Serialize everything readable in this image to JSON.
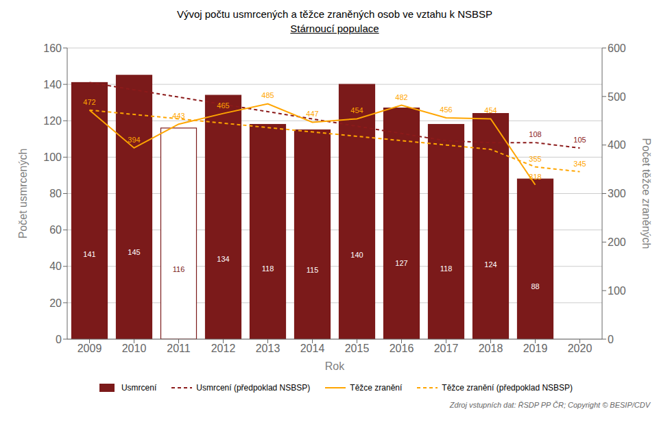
{
  "chart_data": {
    "type": "bar",
    "title": "Vývoj počtu usmrcených a těžce zraněných osob ve vztahu k NSBSP",
    "subtitle": "Stárnoucí populace",
    "xlabel": "Rok",
    "ylabel": "Počet usmrcených",
    "y2label": "Počet těžce zraněných",
    "annotation": "Zdroj vstupních dat: ŘSDP PP ČR; Copyright © BESIP/CDV",
    "categories": [
      "2009",
      "2010",
      "2011",
      "2012",
      "2013",
      "2014",
      "2015",
      "2016",
      "2017",
      "2018",
      "2019",
      "2020"
    ],
    "series": [
      {
        "name": "Usmrcení",
        "type": "bar",
        "color": "#7B1A1A",
        "colors": [
          "#7B1A1A",
          "#7B1A1A",
          "#FFFFFF",
          "#7B1A1A",
          "#7B1A1A",
          "#7B1A1A",
          "#7B1A1A",
          "#7B1A1A",
          "#7B1A1A",
          "#7B1A1A",
          "#7B1A1A",
          "#7B1A1A"
        ],
        "values": [
          141,
          145,
          116,
          134,
          118,
          115,
          140,
          127,
          118,
          124,
          88,
          null
        ]
      },
      {
        "name": "Usmrcení (předpoklad NSBSP)",
        "type": "line",
        "color": "#8B1A1A",
        "line_style": "dashed",
        "values": [
          141,
          137,
          133,
          129,
          125,
          121,
          117,
          113,
          109,
          108,
          108,
          105
        ],
        "value_labels": [
          null,
          null,
          null,
          null,
          null,
          null,
          null,
          null,
          null,
          null,
          "108",
          "105"
        ]
      },
      {
        "name": "Těžce zranění",
        "type": "line",
        "color": "#FFA500",
        "line_style": "solid",
        "axis": "y2",
        "values": [
          472,
          394,
          443,
          465,
          485,
          447,
          454,
          482,
          456,
          454,
          318,
          null
        ]
      },
      {
        "name": "Těžce zranění (předpoklad NSBSP)",
        "type": "line",
        "color": "#FFA500",
        "line_style": "dashed",
        "axis": "y2",
        "values": [
          472,
          463,
          454,
          445,
          436,
          427,
          418,
          409,
          400,
          391,
          355,
          345
        ],
        "value_labels": [
          null,
          null,
          null,
          null,
          null,
          null,
          null,
          null,
          null,
          null,
          "355",
          "345"
        ]
      }
    ],
    "ylim": [
      0,
      160
    ],
    "yticks": [
      0,
      20,
      40,
      60,
      80,
      100,
      120,
      140,
      160
    ],
    "y2lim": [
      0,
      600
    ],
    "y2ticks": [
      0,
      100,
      200,
      300,
      400,
      500,
      600
    ],
    "grid": true,
    "legend": "bottom",
    "data_labels": true
  }
}
